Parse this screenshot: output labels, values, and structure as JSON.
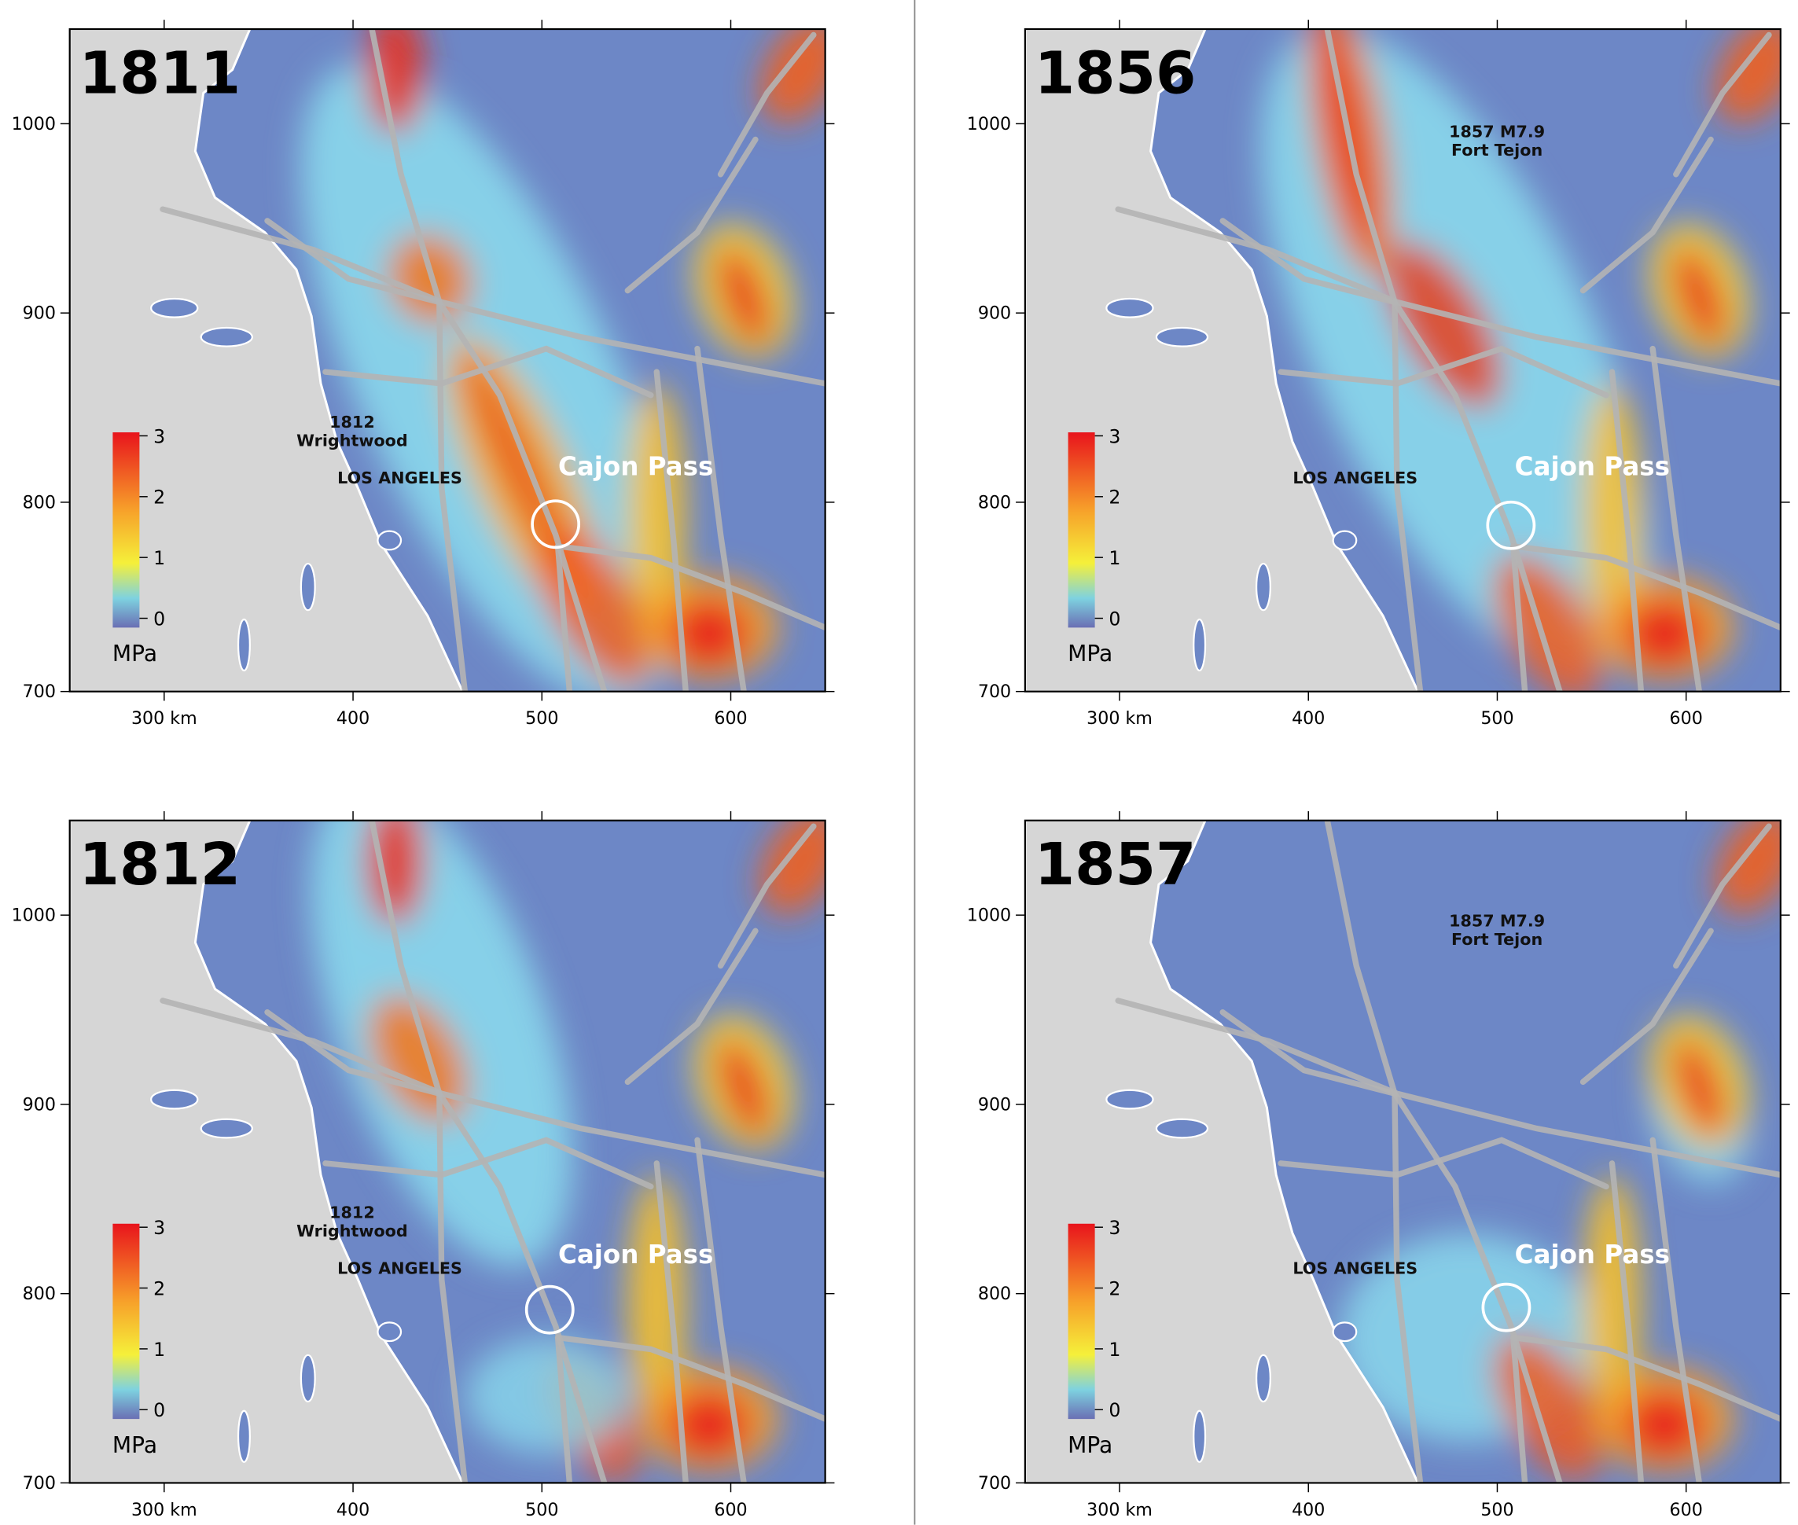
{
  "axes": {
    "xlim": [
      250,
      650
    ],
    "ylim": [
      700,
      1050
    ],
    "xticks": [
      {
        "value": 300,
        "label": "300 km"
      },
      400,
      500,
      600
    ],
    "yticks": [
      700,
      800,
      900,
      1000
    ]
  },
  "colorbar": {
    "lim": [
      0,
      3
    ],
    "ticks": [
      0,
      1,
      2,
      3
    ],
    "label": "MPa"
  },
  "panels": [
    {
      "title": "1811",
      "annotations": [
        {
          "lines": [
            "1812",
            "Wrightwood"
          ]
        },
        {
          "lines": [
            "LOS ANGELES"
          ]
        },
        {
          "lines": [
            "Cajon Pass"
          ]
        }
      ]
    },
    {
      "title": "1856",
      "annotations": [
        {
          "lines": [
            "1857 M7.9",
            "Fort Tejon"
          ]
        },
        {
          "lines": [
            "LOS ANGELES"
          ]
        },
        {
          "lines": [
            "Cajon Pass"
          ]
        }
      ]
    },
    {
      "title": "1812",
      "annotations": [
        {
          "lines": [
            "1812",
            "Wrightwood"
          ]
        },
        {
          "lines": [
            "LOS ANGELES"
          ]
        },
        {
          "lines": [
            "Cajon Pass"
          ]
        }
      ]
    },
    {
      "title": "1857",
      "annotations": [
        {
          "lines": [
            "1857 M7.9",
            "Fort Tejon"
          ]
        },
        {
          "lines": [
            "LOS ANGELES"
          ]
        },
        {
          "lines": [
            "Cajon Pass"
          ]
        }
      ]
    }
  ]
}
